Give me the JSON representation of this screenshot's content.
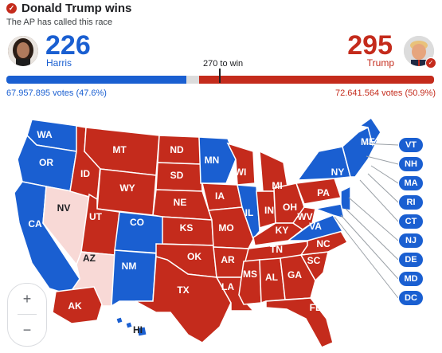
{
  "header": {
    "title": "Donald Trump wins",
    "subtitle": "The AP has called this race"
  },
  "harris": {
    "ev": "226",
    "name": "Harris",
    "votes": "67.957.895 votes (47.6%)",
    "color": "#1a5fd1"
  },
  "trump": {
    "ev": "295",
    "name": "Trump",
    "votes": "72.641.564 votes (50.9%)",
    "color": "#c42b1c"
  },
  "race": {
    "win_label": "270 to win",
    "dem_share": 0.42,
    "rep_share": 0.55
  },
  "states": {
    "WA": "WA",
    "OR": "OR",
    "CA": "CA",
    "NV": "NV",
    "ID": "ID",
    "MT": "MT",
    "WY": "WY",
    "UT": "UT",
    "AZ": "AZ",
    "CO": "CO",
    "NM": "NM",
    "ND": "ND",
    "SD": "SD",
    "NE": "NE",
    "KS": "KS",
    "OK": "OK",
    "TX": "TX",
    "MN": "MN",
    "IA": "IA",
    "MO": "MO",
    "AR": "AR",
    "LA": "LA",
    "WI": "WI",
    "IL": "IL",
    "MI": "MI",
    "IN": "IN",
    "OH": "OH",
    "KY": "KY",
    "TN": "TN",
    "MS": "MS",
    "AL": "AL",
    "GA": "GA",
    "FL": "FL",
    "SC": "SC",
    "NC": "NC",
    "VA": "VA",
    "WV": "WV",
    "PA": "PA",
    "NY": "NY",
    "ME": "ME",
    "AK": "AK",
    "HI": "HI"
  },
  "small_states": [
    "VT",
    "NH",
    "MA",
    "RI",
    "CT",
    "NJ",
    "DE",
    "MD",
    "DC"
  ],
  "zoom": {
    "in": "+",
    "out": "−"
  }
}
